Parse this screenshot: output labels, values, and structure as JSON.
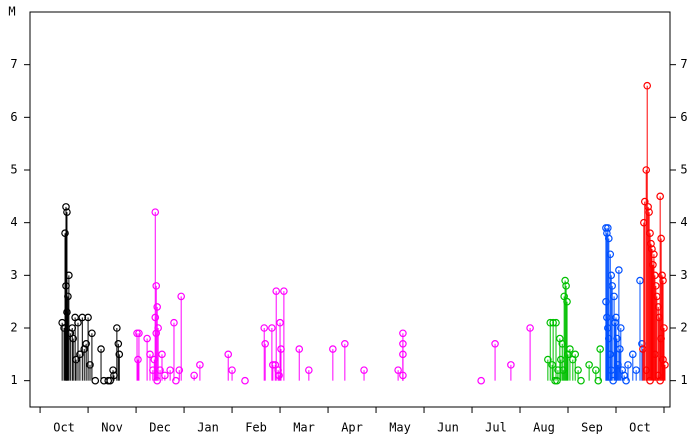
{
  "chart_data": {
    "type": "stem",
    "ylabel": "M",
    "ylim": [
      0.5,
      8
    ],
    "yticks": [
      1,
      2,
      3,
      4,
      5,
      6,
      7
    ],
    "xlim": [
      -0.21,
      13.125
    ],
    "xticks": [
      {
        "value": 0.5,
        "label": "Oct"
      },
      {
        "value": 1.5,
        "label": "Nov"
      },
      {
        "value": 2.5,
        "label": "Dec"
      },
      {
        "value": 3.5,
        "label": "Jan"
      },
      {
        "value": 4.5,
        "label": "Feb"
      },
      {
        "value": 5.5,
        "label": "Mar"
      },
      {
        "value": 6.5,
        "label": "Apr"
      },
      {
        "value": 7.5,
        "label": "May"
      },
      {
        "value": 8.5,
        "label": "Jun"
      },
      {
        "value": 9.5,
        "label": "Jul"
      },
      {
        "value": 10.5,
        "label": "Aug"
      },
      {
        "value": 11.5,
        "label": "Sep"
      },
      {
        "value": 12.5,
        "label": "Oct"
      }
    ],
    "xminorticks": [
      0,
      1,
      2,
      3,
      4,
      5,
      6,
      7,
      8,
      9,
      10,
      11,
      12,
      13
    ],
    "stem_base": 1,
    "series": [
      {
        "color": "#000000",
        "x": [
          0.54,
          0.56,
          0.52,
          0.54,
          0.6,
          0.58,
          0.56,
          0.46,
          0.5,
          0.63,
          0.73,
          0.79,
          0.69,
          0.83,
          0.75,
          0.92,
          1.0,
          0.96,
          1.08,
          1.04,
          1.15,
          1.27,
          1.33,
          1.42,
          1.52,
          1.46,
          1.6,
          1.63,
          1.65,
          1.54,
          0.88,
          0.67
        ],
        "values": [
          4.3,
          4.2,
          3.8,
          2.8,
          3.0,
          2.6,
          2.3,
          2.1,
          2.0,
          1.9,
          2.2,
          2.1,
          1.8,
          1.5,
          1.4,
          1.6,
          2.2,
          1.7,
          1.9,
          1.3,
          1.0,
          1.6,
          1.0,
          1.0,
          1.2,
          1.0,
          2.0,
          1.7,
          1.5,
          1.1,
          2.2,
          2.0
        ]
      },
      {
        "color": "#ff00ff",
        "x": [
          2.02,
          2.06,
          2.04,
          2.23,
          2.29,
          2.35,
          2.4,
          2.42,
          2.4,
          2.44,
          2.42,
          2.46,
          2.38,
          2.44,
          2.5,
          2.54,
          2.6,
          2.71,
          2.79,
          2.83,
          2.9,
          2.94,
          3.21,
          3.33,
          3.92,
          4.0,
          4.27,
          4.67,
          4.69,
          4.83,
          4.85,
          4.9,
          4.92,
          4.96,
          5.0,
          5.02,
          5.08,
          4.98,
          5.4,
          5.6,
          6.1,
          6.35,
          6.75,
          7.46,
          7.56,
          7.56,
          7.56,
          7.56,
          9.19,
          9.48,
          9.81,
          10.21
        ],
        "values": [
          1.9,
          1.9,
          1.4,
          1.8,
          1.5,
          1.2,
          4.2,
          2.8,
          2.2,
          2.4,
          1.9,
          2.0,
          1.4,
          1.0,
          1.2,
          1.5,
          1.1,
          1.2,
          2.1,
          1.0,
          1.2,
          2.6,
          1.1,
          1.3,
          1.5,
          1.2,
          1.0,
          2.0,
          1.7,
          2.0,
          1.3,
          1.3,
          2.7,
          1.2,
          2.1,
          1.6,
          2.7,
          1.1,
          1.6,
          1.2,
          1.6,
          1.7,
          1.2,
          1.2,
          1.9,
          1.7,
          1.5,
          1.1,
          1.0,
          1.7,
          1.3,
          2.0
        ]
      },
      {
        "color": "#00c000",
        "x": [
          10.58,
          10.63,
          10.67,
          10.69,
          10.73,
          10.75,
          10.79,
          10.83,
          10.88,
          10.92,
          10.94,
          10.96,
          10.98,
          11.0,
          11.04,
          11.1,
          11.15,
          11.21,
          11.27,
          11.44,
          11.58,
          11.63,
          11.67,
          10.77,
          10.85,
          10.9
        ],
        "values": [
          1.4,
          2.1,
          1.3,
          2.1,
          1.0,
          2.1,
          1.2,
          1.8,
          1.7,
          2.6,
          2.9,
          2.8,
          2.5,
          1.5,
          1.6,
          1.4,
          1.5,
          1.2,
          1.0,
          1.3,
          1.2,
          1.0,
          1.6,
          1.0,
          1.4,
          1.2
        ]
      },
      {
        "color": "#0050ff",
        "x": [
          11.79,
          11.81,
          11.83,
          11.85,
          11.88,
          11.9,
          11.79,
          11.81,
          11.83,
          11.85,
          11.88,
          11.9,
          11.92,
          11.96,
          11.98,
          12.0,
          12.02,
          12.04,
          12.06,
          12.08,
          12.13,
          12.17,
          12.21,
          12.25,
          12.35,
          12.42,
          12.5,
          12.54,
          11.94,
          12.1
        ],
        "values": [
          3.9,
          3.8,
          3.9,
          3.7,
          3.4,
          3.0,
          2.5,
          2.2,
          2.0,
          1.8,
          1.5,
          1.2,
          2.8,
          2.6,
          2.1,
          2.2,
          1.8,
          1.3,
          3.1,
          1.6,
          1.2,
          1.1,
          1.0,
          1.3,
          1.5,
          1.2,
          2.9,
          1.7,
          1.0,
          2.0
        ]
      },
      {
        "color": "#ff0000",
        "x": [
          12.65,
          12.63,
          12.6,
          12.58,
          12.67,
          12.69,
          12.71,
          12.73,
          12.75,
          12.77,
          12.79,
          12.81,
          12.83,
          12.85,
          12.88,
          12.9,
          12.92,
          12.94,
          12.96,
          12.98,
          13.0,
          13.02,
          12.56,
          12.63,
          12.71,
          12.81,
          12.88,
          12.94,
          12.98,
          12.92
        ],
        "values": [
          6.6,
          5.0,
          4.4,
          4.0,
          4.3,
          4.2,
          3.8,
          3.6,
          3.5,
          3.2,
          3.4,
          3.0,
          2.8,
          2.6,
          2.4,
          2.2,
          4.5,
          3.7,
          3.0,
          2.9,
          2.0,
          1.3,
          1.6,
          1.2,
          1.0,
          1.5,
          1.1,
          1.8,
          1.4,
          1.0
        ]
      }
    ]
  }
}
